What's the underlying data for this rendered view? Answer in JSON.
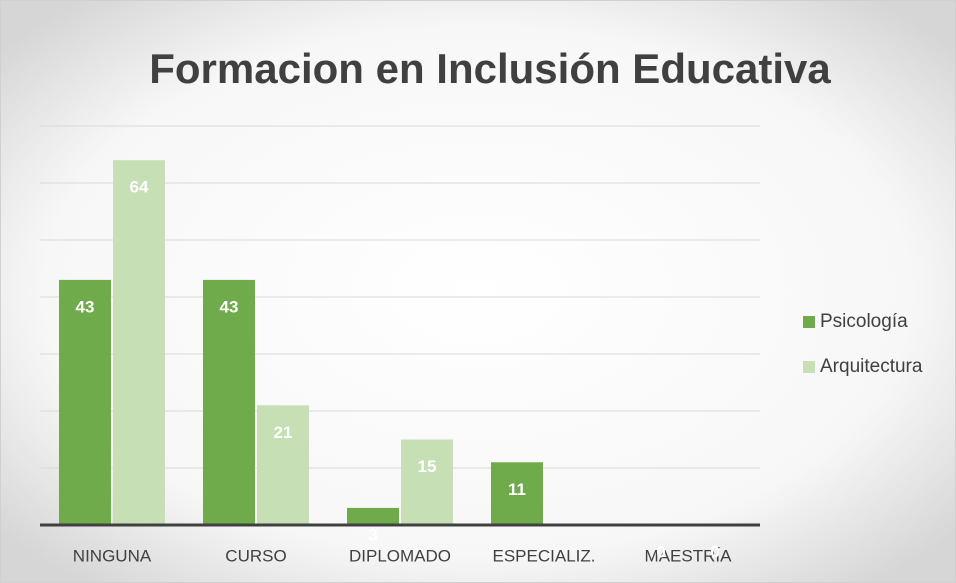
{
  "chart_data": {
    "type": "bar",
    "title": "Formacion en Inclusión Educativa",
    "categories": [
      "NINGUNA",
      "CURSO",
      "DIPLOMADO",
      "ESPECIALIZ.",
      "MAESTRÍA"
    ],
    "series": [
      {
        "name": "Psicología",
        "color": "#6fab4a",
        "values": [
          43,
          43,
          3,
          11,
          0
        ]
      },
      {
        "name": "Arquitectura",
        "color": "#c6dfb5",
        "values": [
          64,
          21,
          15,
          null,
          0
        ]
      }
    ],
    "ylim": [
      0,
      70
    ],
    "yticks": [
      0,
      10,
      20,
      30,
      40,
      50,
      60,
      70
    ],
    "grid": true,
    "legend": "right"
  }
}
